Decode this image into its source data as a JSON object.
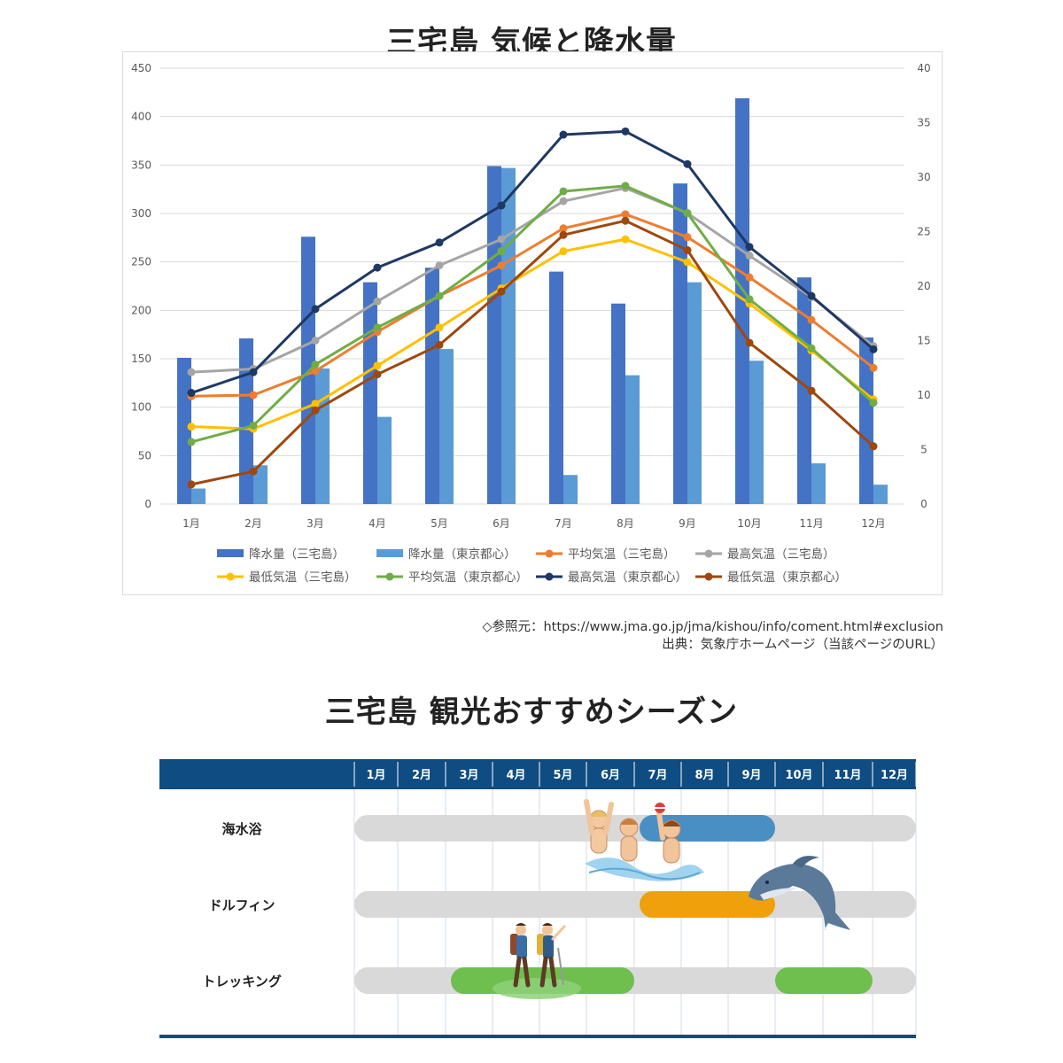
{
  "chart1": {
    "title": "三宅島 気候と降水量",
    "source": "◇参照元：https://www.jma.go.jp/jma/kishou/info/coment.html#exclusion",
    "credit": "出典：気象庁ホームページ（当該ページのURL）"
  },
  "chart_data": [
    {
      "type": "bar",
      "title": "三宅島 気候と降水量",
      "categories": [
        "1月",
        "2月",
        "3月",
        "4月",
        "5月",
        "6月",
        "7月",
        "8月",
        "9月",
        "10月",
        "11月",
        "12月"
      ],
      "ylim": [
        0,
        450
      ],
      "y2lim": [
        0,
        40
      ],
      "y_ticks": [
        0,
        50,
        100,
        150,
        200,
        250,
        300,
        350,
        400,
        450
      ],
      "y2_ticks": [
        0,
        5,
        10,
        15,
        20,
        25,
        30,
        35,
        40
      ],
      "gridlines": true,
      "legend_position": "bottom",
      "series": [
        {
          "name": "降水量（三宅島）",
          "kind": "bar",
          "axis": "left",
          "color": "#4472c4",
          "values": [
            151,
            171,
            276,
            229,
            244,
            349,
            240,
            207,
            331,
            419,
            234,
            172
          ]
        },
        {
          "name": "降水量（東京都心）",
          "kind": "bar",
          "axis": "left",
          "color": "#5b9bd5",
          "values": [
            16,
            40,
            140,
            90,
            160,
            347,
            30,
            133,
            229,
            148,
            42,
            20
          ]
        },
        {
          "name": "平均気温（三宅島）",
          "kind": "line",
          "axis": "right",
          "color": "#ed7d31",
          "values": [
            9.9,
            10.0,
            12.2,
            15.8,
            19.1,
            21.9,
            25.3,
            26.6,
            24.5,
            20.8,
            16.9,
            12.5
          ]
        },
        {
          "name": "最高気温（三宅島）",
          "kind": "line",
          "axis": "right",
          "color": "#a5a5a5",
          "values": [
            12.1,
            12.4,
            15.0,
            18.6,
            21.9,
            24.3,
            27.8,
            29.0,
            26.7,
            22.8,
            19.0,
            14.5
          ]
        },
        {
          "name": "最低気温（三宅島）",
          "kind": "line",
          "axis": "right",
          "color": "#ffc000",
          "values": [
            7.1,
            6.9,
            9.2,
            12.7,
            16.2,
            19.8,
            23.2,
            24.3,
            22.2,
            18.4,
            14.1,
            9.6
          ]
        },
        {
          "name": "平均気温（東京都心）",
          "kind": "line",
          "axis": "right",
          "color": "#70ad47",
          "values": [
            5.7,
            7.2,
            12.8,
            16.2,
            19.1,
            23.2,
            28.7,
            29.2,
            26.7,
            18.8,
            14.3,
            9.3
          ]
        },
        {
          "name": "最高気温（東京都心）",
          "kind": "line",
          "axis": "right",
          "color": "#1f3864",
          "values": [
            10.2,
            12.1,
            17.9,
            21.7,
            24.0,
            27.4,
            33.9,
            34.2,
            31.2,
            23.6,
            19.1,
            14.2
          ]
        },
        {
          "name": "最低気温（東京都心）",
          "kind": "line",
          "axis": "right",
          "color": "#9e480e",
          "values": [
            1.8,
            3.0,
            8.6,
            11.9,
            14.6,
            19.5,
            24.7,
            26.0,
            23.3,
            14.8,
            10.4,
            5.3
          ]
        }
      ]
    },
    {
      "type": "table",
      "title": "三宅島 観光おすすめシーズン",
      "columns": [
        "1月",
        "2月",
        "3月",
        "4月",
        "5月",
        "6月",
        "7月",
        "8月",
        "9月",
        "10月",
        "11月",
        "12月"
      ],
      "rows": [
        {
          "label": "海水浴",
          "season_start_month": 7,
          "season_end_month": 9,
          "color": "#4a8fc4"
        },
        {
          "label": "ドルフィン",
          "season_start_month": 7,
          "season_end_month": 9,
          "color": "#f0a00a"
        },
        {
          "label": "トレッキング",
          "season_start_month": 3,
          "season_end_month": 6,
          "color": "#6fbf4f",
          "second_season_start_month": 10,
          "second_season_end_month": 11
        }
      ]
    }
  ],
  "chart2": {
    "title": "三宅島 観光おすすめシーズン"
  },
  "icons": [
    "swimmers-illustration",
    "dolphin-illustration",
    "hikers-illustration"
  ]
}
